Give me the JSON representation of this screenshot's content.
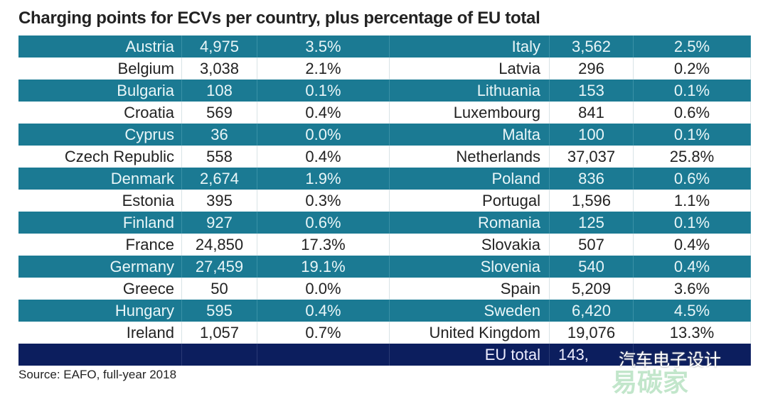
{
  "chart_data": {
    "type": "table",
    "title": "Charging points for ECVs per country, plus percentage of EU total",
    "left": [
      [
        "Austria",
        "4,975",
        "3.5%"
      ],
      [
        "Belgium",
        "3,038",
        "2.1%"
      ],
      [
        "Bulgaria",
        "108",
        "0.1%"
      ],
      [
        "Croatia",
        "569",
        "0.4%"
      ],
      [
        "Cyprus",
        "36",
        "0.0%"
      ],
      [
        "Czech Republic",
        "558",
        "0.4%"
      ],
      [
        "Denmark",
        "2,674",
        "1.9%"
      ],
      [
        "Estonia",
        "395",
        "0.3%"
      ],
      [
        "Finland",
        "927",
        "0.6%"
      ],
      [
        "France",
        "24,850",
        "17.3%"
      ],
      [
        "Germany",
        "27,459",
        "19.1%"
      ],
      [
        "Greece",
        "50",
        "0.0%"
      ],
      [
        "Hungary",
        "595",
        "0.4%"
      ],
      [
        "Ireland",
        "1,057",
        "0.7%"
      ]
    ],
    "right": [
      [
        "Italy",
        "3,562",
        "2.5%"
      ],
      [
        "Latvia",
        "296",
        "0.2%"
      ],
      [
        "Lithuania",
        "153",
        "0.1%"
      ],
      [
        "Luxembourg",
        "841",
        "0.6%"
      ],
      [
        "Malta",
        "100",
        "0.1%"
      ],
      [
        "Netherlands",
        "37,037",
        "25.8%"
      ],
      [
        "Poland",
        "836",
        "0.6%"
      ],
      [
        "Portugal",
        "1,596",
        "1.1%"
      ],
      [
        "Romania",
        "125",
        "0.1%"
      ],
      [
        "Slovakia",
        "507",
        "0.4%"
      ],
      [
        "Slovenia",
        "540",
        "0.4%"
      ],
      [
        "Spain",
        "5,209",
        "3.6%"
      ],
      [
        "Sweden",
        "6,420",
        "4.5%"
      ],
      [
        "United Kingdom",
        "19,076",
        "13.3%"
      ]
    ],
    "total": {
      "label": "EU total",
      "value": "143,"
    },
    "source": "Source: EAFO, full-year 2018",
    "colors": {
      "stripe": "#1b7a93",
      "total": "#0c1e5e"
    }
  },
  "watermark": {
    "text": "汽车电子设计",
    "brand": "易碳家"
  }
}
